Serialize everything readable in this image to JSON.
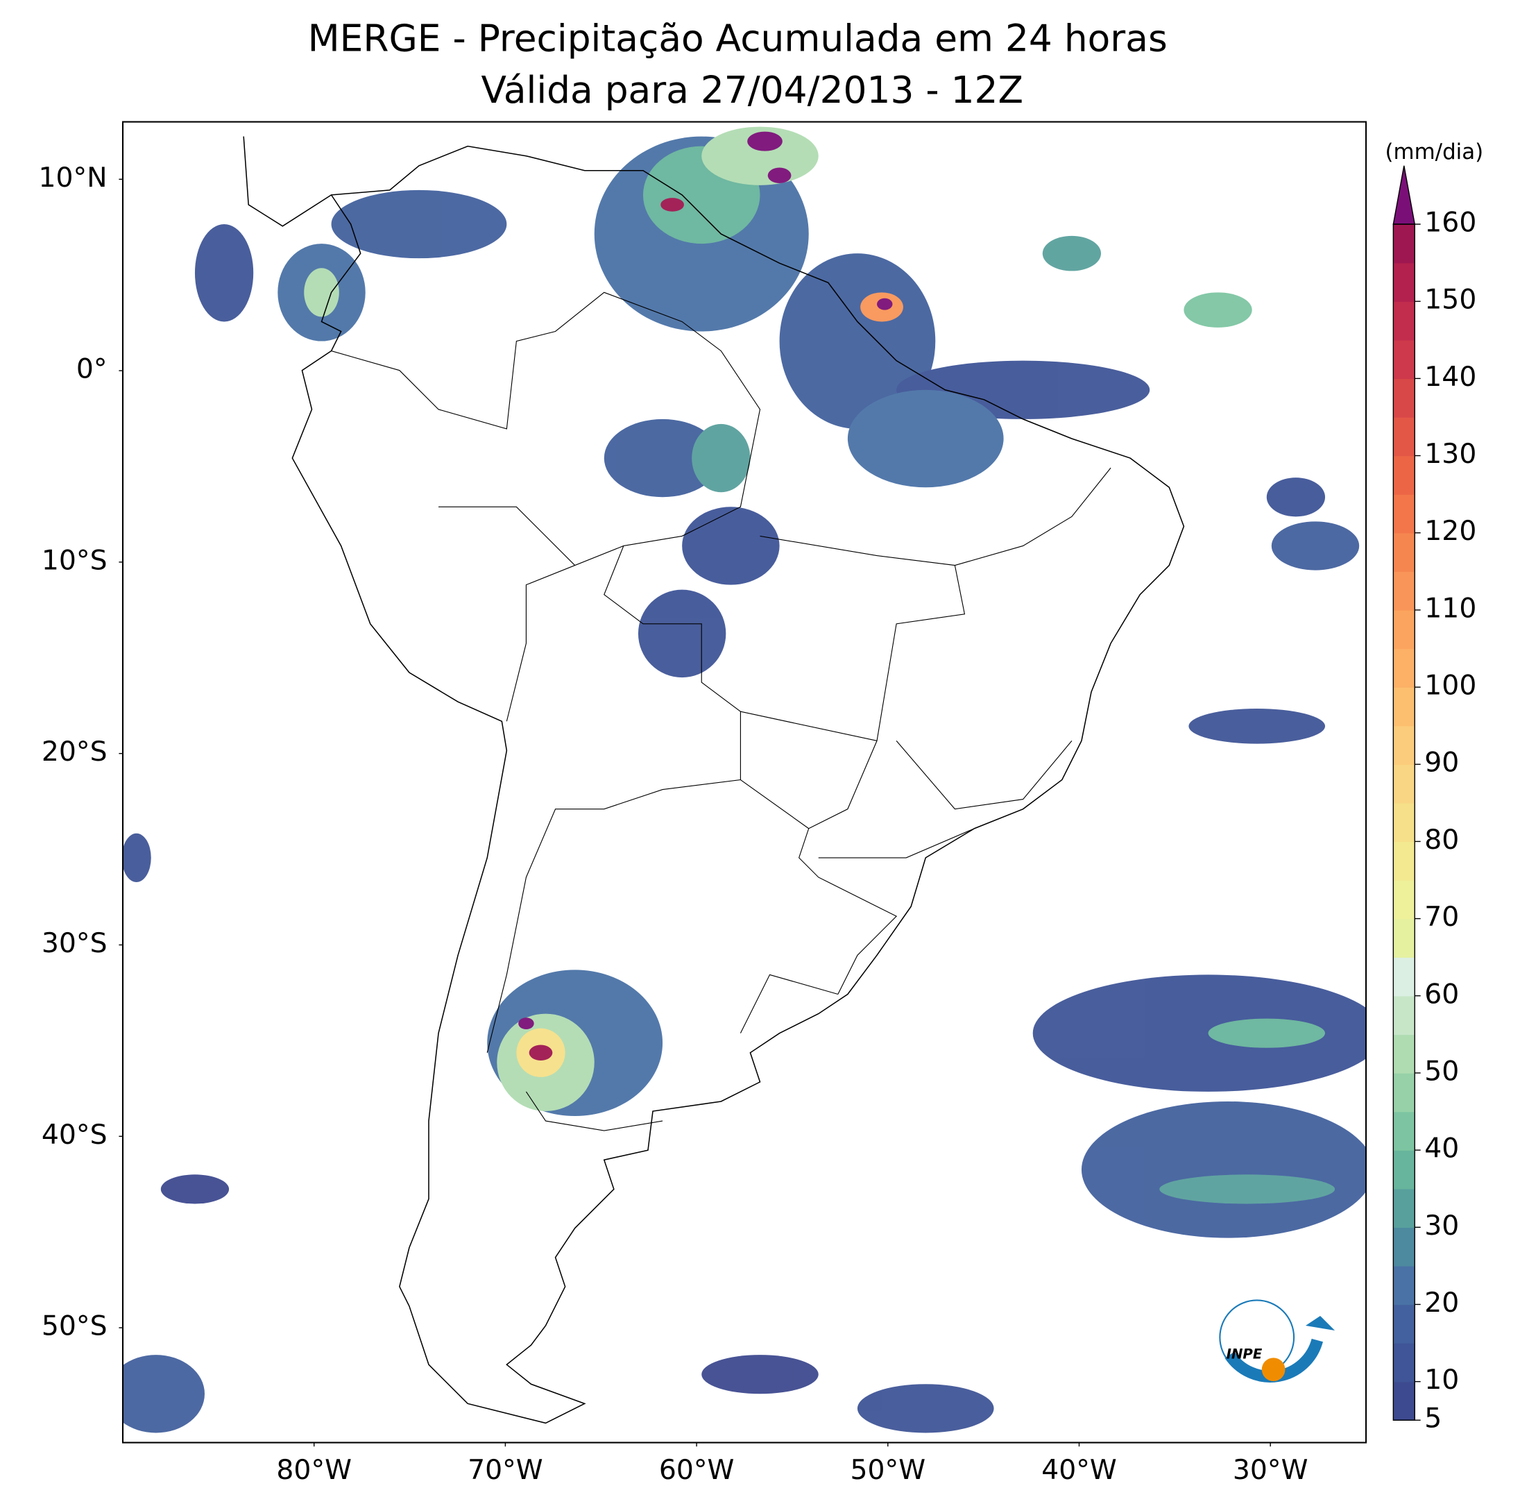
{
  "chart_data": {
    "type": "map",
    "title": "MERGE - Precipitação Acumulada em 24 horas",
    "subtitle": "Válida para 27/04/2013 - 12Z",
    "xlim": [
      -90,
      -25
    ],
    "ylim": [
      -56,
      13
    ],
    "xticks": [
      {
        "value": -80,
        "label": "80°W"
      },
      {
        "value": -70,
        "label": "70°W"
      },
      {
        "value": -60,
        "label": "60°W"
      },
      {
        "value": -50,
        "label": "50°W"
      },
      {
        "value": -40,
        "label": "40°W"
      },
      {
        "value": -30,
        "label": "30°W"
      }
    ],
    "yticks": [
      {
        "value": 10,
        "label": "10°N"
      },
      {
        "value": 0,
        "label": "0°"
      },
      {
        "value": -10,
        "label": "10°S"
      },
      {
        "value": -20,
        "label": "20°S"
      },
      {
        "value": -30,
        "label": "30°S"
      },
      {
        "value": -40,
        "label": "40°S"
      },
      {
        "value": -50,
        "label": "50°S"
      }
    ],
    "colorbar": {
      "label": "(mm/dia)",
      "lim": [
        5,
        160
      ],
      "ticks": [
        5,
        10,
        20,
        30,
        40,
        50,
        60,
        70,
        80,
        90,
        100,
        110,
        120,
        130,
        140,
        150,
        160
      ],
      "colors": [
        "#3e4a8f",
        "#3f5597",
        "#43619e",
        "#4a72a6",
        "#4d8a9f",
        "#58a09c",
        "#68b59d",
        "#7dc5a2",
        "#96d1a8",
        "#b0dcb2",
        "#c7e6c8",
        "#dcefe3",
        "#e6f1a0",
        "#eef09a",
        "#f2e991",
        "#f6e089",
        "#f9d683",
        "#fbcc7b",
        "#fcbf70",
        "#fcb167",
        "#fba45f",
        "#f99558",
        "#f68650",
        "#f2764a",
        "#ec6646",
        "#e35747",
        "#d94849",
        "#ce394b",
        "#c22c4d",
        "#b3214f",
        "#9f1750"
      ],
      "extend_color": "#7b0f78"
    },
    "logo": "INPE"
  }
}
